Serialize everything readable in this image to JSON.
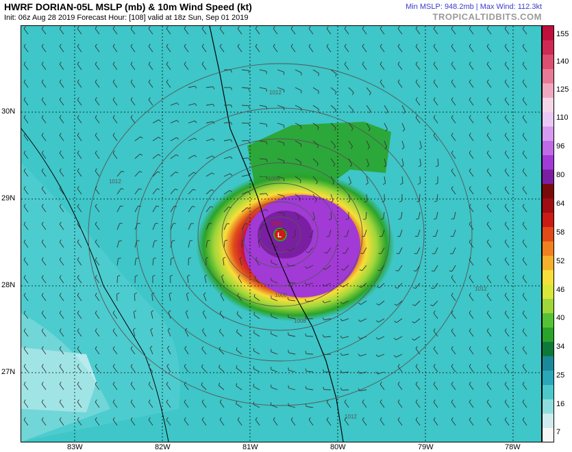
{
  "header": {
    "title": "HWRF DORIAN-05L MSLP (mb) & 10m Wind Speed (kt)",
    "subtitle": "Init: 06z Aug 28 2019   Forecast Hour: [108]   valid at 18z Sun, Sep 01 2019",
    "stats": "Min MSLP: 948.2mb | Max Wind: 112.3kt",
    "site": "TROPICALTIDBITS.COM"
  },
  "map": {
    "lon_labels": [
      "83W",
      "82W",
      "81W",
      "80W",
      "79W",
      "78W"
    ],
    "lat_labels": [
      "30N",
      "29N",
      "28N",
      "27N"
    ],
    "isobar_labels": [
      "1012",
      "1012",
      "1008",
      "1008",
      "1008",
      "1012",
      "1012"
    ],
    "storm_marker": "L",
    "storm_pressure_label": "948"
  },
  "colorbar": {
    "labels": [
      "155",
      "140",
      "125",
      "110",
      "96",
      "80",
      "64",
      "58",
      "52",
      "46",
      "40",
      "34",
      "25",
      "16",
      "7"
    ],
    "colors": [
      "#f7f7f7",
      "#d0ebee",
      "#8fdede",
      "#4cc8ca",
      "#2aa7b8",
      "#1a8a9a",
      "#0d7a3a",
      "#2aa32a",
      "#55c235",
      "#9fd63a",
      "#d9e63a",
      "#f6df3a",
      "#f7b02c",
      "#f0801f",
      "#e24a18",
      "#cc1a16",
      "#a00d12",
      "#7a0a0a",
      "#7b1fa2",
      "#a23ad6",
      "#c16ae6",
      "#d69bf0",
      "#eac8f6",
      "#f5d5e8",
      "#f0a8c0",
      "#e87a98",
      "#dd4f70",
      "#cf2a52",
      "#c00f3c"
    ]
  }
}
